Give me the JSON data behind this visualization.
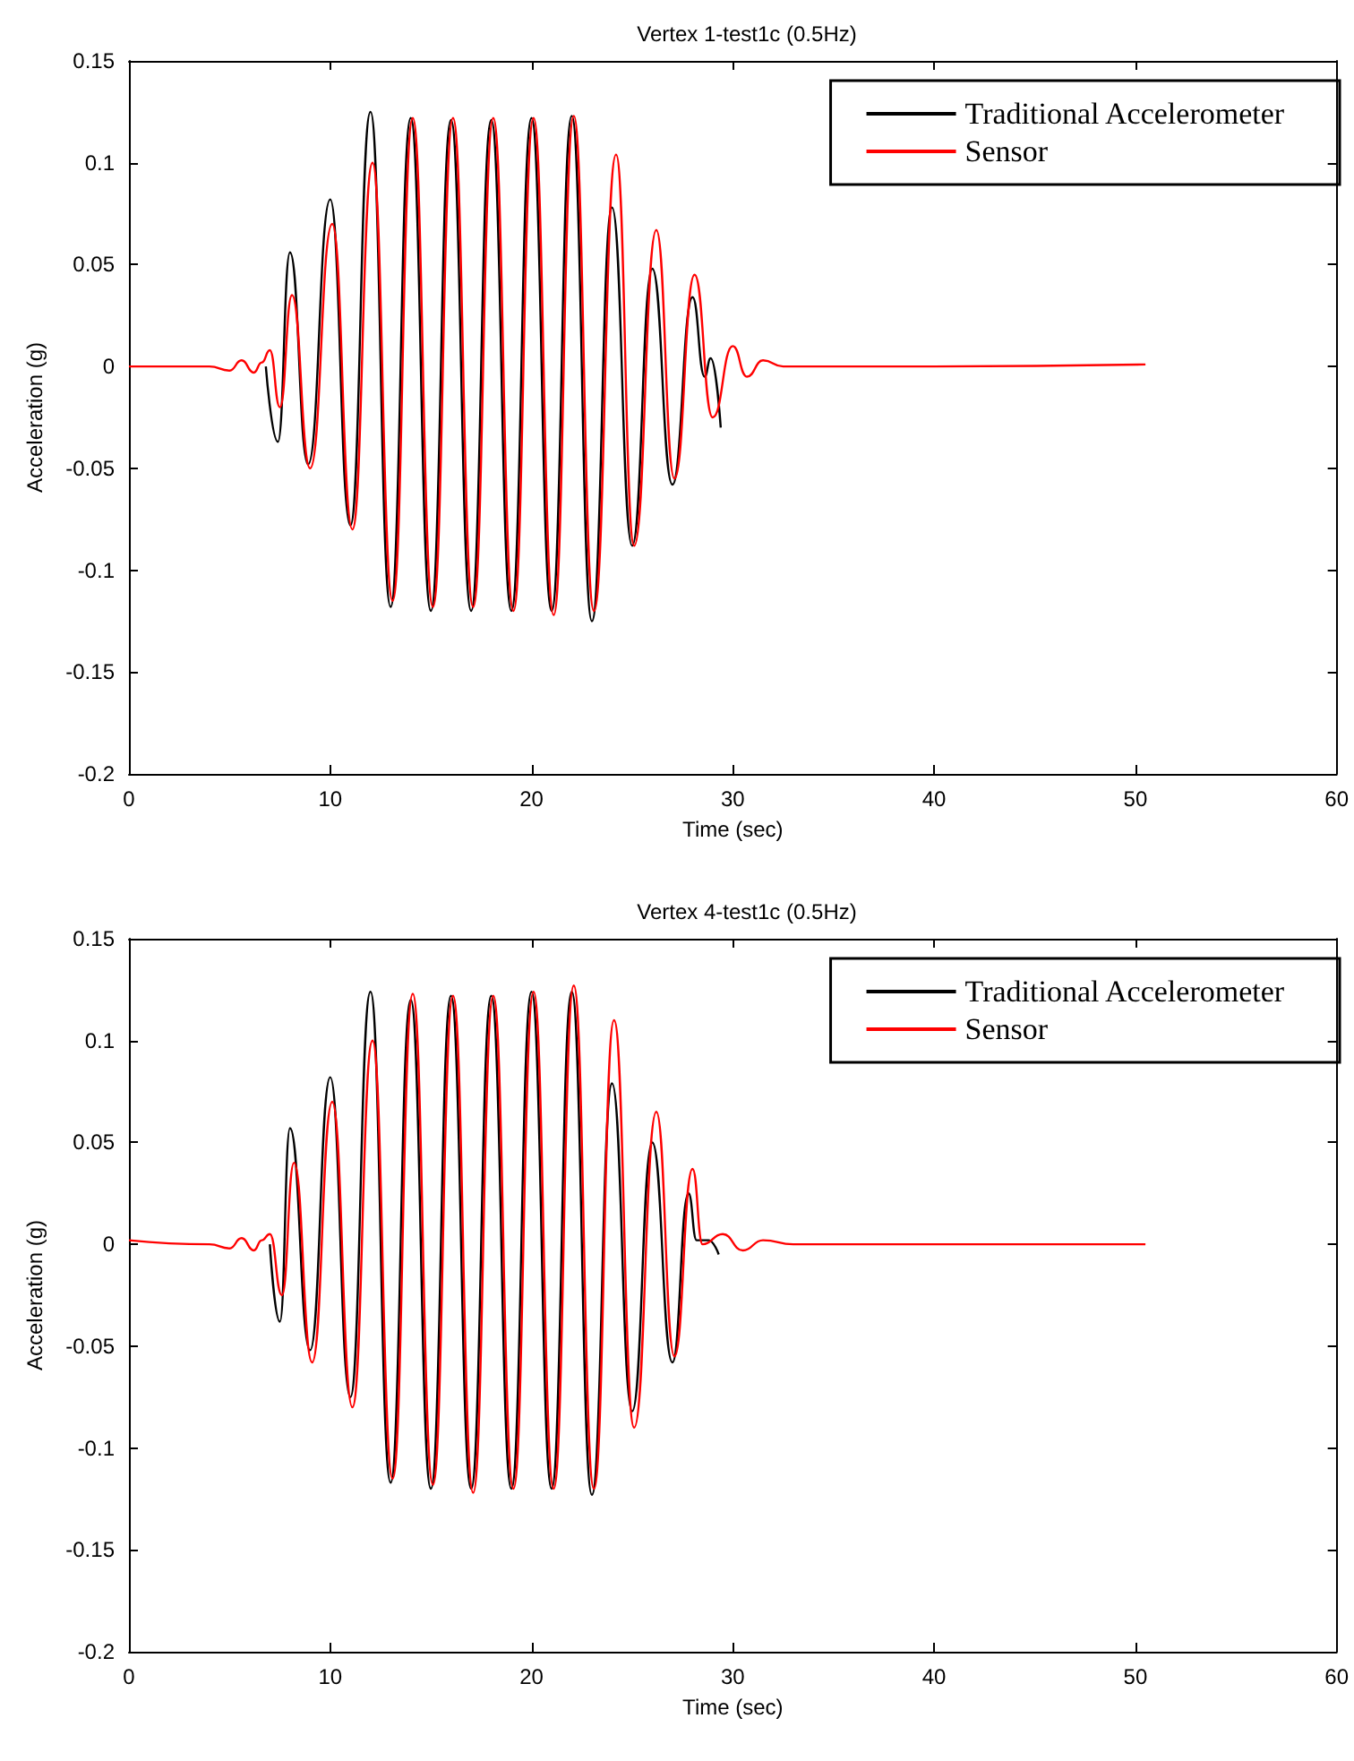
{
  "chart_data": [
    {
      "type": "line",
      "title": "Vertex 1-test1c (0.5Hz)",
      "xlabel": "Time (sec)",
      "ylabel": "Acceleration (g)",
      "xlim": [
        0,
        60
      ],
      "xticks": [
        0,
        10,
        20,
        30,
        40,
        50,
        60
      ],
      "ylim": [
        -0.2,
        0.15
      ],
      "yticks": [
        -0.2,
        -0.15,
        -0.1,
        -0.05,
        0,
        0.05,
        0.1,
        0.15
      ],
      "grid": false,
      "legend": "top right",
      "marker": "none",
      "line_style": "solid",
      "series": [
        {
          "name": "Traditional Accelerometer",
          "color": "#000000",
          "x": [
            6.8,
            7.4,
            8.0,
            8.9,
            10.0,
            11.0,
            12.0,
            13.0,
            14.0,
            15.0,
            16.0,
            17.0,
            18.0,
            19.0,
            20.0,
            21.0,
            22.0,
            23.0,
            24.0,
            25.0,
            26.0,
            27.0,
            28.0,
            28.6,
            28.9,
            29.4
          ],
          "values": [
            0,
            -0.037,
            0.056,
            -0.048,
            0.082,
            -0.078,
            0.125,
            -0.118,
            0.122,
            -0.12,
            0.121,
            -0.12,
            0.121,
            -0.12,
            0.122,
            -0.12,
            0.123,
            -0.125,
            0.078,
            -0.088,
            0.048,
            -0.058,
            0.034,
            -0.005,
            0.004,
            -0.03
          ]
        },
        {
          "name": "Sensor",
          "color": "#ff0000",
          "x": [
            0,
            4,
            5,
            5.6,
            6.2,
            6.6,
            7.0,
            7.5,
            8.1,
            9.0,
            10.1,
            11.1,
            12.1,
            13.1,
            14.1,
            15.1,
            16.1,
            17.1,
            18.1,
            19.1,
            20.1,
            21.1,
            22.1,
            23.1,
            24.2,
            25.1,
            26.2,
            27.1,
            28.1,
            29.0,
            30.0,
            30.7,
            31.5,
            32.5,
            40,
            50.5
          ],
          "values": [
            0,
            0,
            -0.002,
            0.003,
            -0.003,
            0.002,
            0.008,
            -0.02,
            0.035,
            -0.05,
            0.07,
            -0.08,
            0.1,
            -0.115,
            0.122,
            -0.118,
            0.122,
            -0.118,
            0.122,
            -0.12,
            0.122,
            -0.122,
            0.123,
            -0.12,
            0.104,
            -0.088,
            0.067,
            -0.055,
            0.045,
            -0.025,
            0.01,
            -0.005,
            0.003,
            0,
            0,
            0.001
          ]
        }
      ]
    },
    {
      "type": "line",
      "title": "Vertex 4-test1c (0.5Hz)",
      "xlabel": "Time (sec)",
      "ylabel": "Acceleration (g)",
      "xlim": [
        0,
        60
      ],
      "xticks": [
        0,
        10,
        20,
        30,
        40,
        50,
        60
      ],
      "ylim": [
        -0.2,
        0.15
      ],
      "yticks": [
        -0.2,
        -0.15,
        -0.1,
        -0.05,
        0,
        0.05,
        0.1,
        0.15
      ],
      "grid": false,
      "legend": "top right",
      "marker": "none",
      "line_style": "solid",
      "series": [
        {
          "name": "Traditional Accelerometer",
          "color": "#000000",
          "x": [
            7.0,
            7.5,
            8.0,
            9.0,
            10.0,
            11.0,
            12.0,
            13.0,
            14.0,
            15.0,
            16.0,
            17.0,
            18.0,
            19.0,
            20.0,
            21.0,
            22.0,
            23.0,
            24.0,
            25.0,
            26.0,
            27.0,
            27.8,
            28.2,
            28.8,
            29.3
          ],
          "values": [
            0,
            -0.038,
            0.057,
            -0.052,
            0.082,
            -0.075,
            0.124,
            -0.117,
            0.12,
            -0.12,
            0.122,
            -0.12,
            0.122,
            -0.12,
            0.124,
            -0.12,
            0.124,
            -0.123,
            0.079,
            -0.082,
            0.05,
            -0.058,
            0.025,
            0.002,
            0.002,
            -0.005
          ]
        },
        {
          "name": "Sensor",
          "color": "#ff0000",
          "x": [
            0,
            4,
            5,
            5.6,
            6.2,
            6.6,
            7.0,
            7.6,
            8.2,
            9.1,
            10.1,
            11.1,
            12.1,
            13.1,
            14.1,
            15.1,
            16.1,
            17.1,
            18.1,
            19.1,
            20.1,
            21.1,
            22.1,
            23.1,
            24.1,
            25.1,
            26.2,
            27.1,
            28.0,
            28.5,
            29.5,
            30.5,
            31.5,
            33,
            40,
            50.5
          ],
          "values": [
            0.002,
            0,
            -0.002,
            0.003,
            -0.003,
            0.002,
            0.005,
            -0.025,
            0.04,
            -0.058,
            0.07,
            -0.08,
            0.1,
            -0.115,
            0.123,
            -0.118,
            0.122,
            -0.122,
            0.122,
            -0.12,
            0.124,
            -0.12,
            0.127,
            -0.12,
            0.11,
            -0.09,
            0.065,
            -0.055,
            0.037,
            0,
            0.005,
            -0.003,
            0.002,
            0,
            0,
            0
          ]
        }
      ]
    }
  ]
}
